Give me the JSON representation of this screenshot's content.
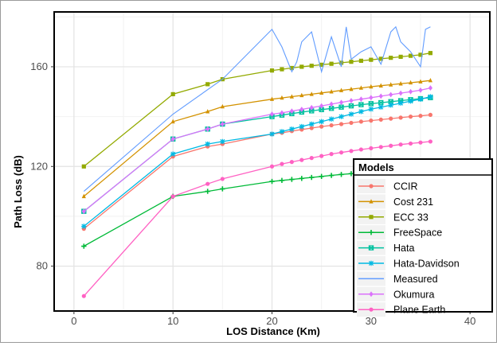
{
  "chart_data": {
    "type": "line",
    "xlabel": "LOS Distance (Km)",
    "ylabel": "Path Loss (dB)",
    "xlim": [
      -2,
      42
    ],
    "ylim": [
      62,
      182
    ],
    "x_ticks": [
      0,
      10,
      20,
      30,
      40
    ],
    "y_ticks": [
      80,
      120,
      160
    ],
    "grid": true,
    "legend": {
      "title": "Models",
      "placement": "bottom-right"
    },
    "series": [
      {
        "name": "CCIR",
        "color": "#f8766d",
        "marker": "circle",
        "x": [
          1,
          10,
          13.5,
          15,
          20,
          21,
          22,
          23,
          24,
          25,
          26,
          27,
          28,
          29,
          30,
          31,
          32,
          33,
          34,
          35,
          36
        ],
        "y": [
          95,
          124,
          128,
          129,
          133,
          133.5,
          134.2,
          134.8,
          135.4,
          136,
          136.5,
          137,
          137.5,
          138,
          138.4,
          138.8,
          139.2,
          139.6,
          140,
          140.3,
          140.7
        ]
      },
      {
        "name": "Cost 231",
        "color": "#d39200",
        "marker": "triangle",
        "x": [
          1,
          10,
          13.5,
          15,
          20,
          21,
          22,
          23,
          24,
          25,
          26,
          27,
          28,
          29,
          30,
          31,
          32,
          33,
          34,
          35,
          36
        ],
        "y": [
          108,
          138,
          142,
          144,
          147,
          147.5,
          148,
          148.5,
          149,
          149.5,
          150,
          150.5,
          151,
          151.5,
          152,
          152.4,
          152.8,
          153.2,
          153.6,
          154,
          154.5
        ]
      },
      {
        "name": "ECC 33",
        "color": "#93aa00",
        "marker": "square",
        "x": [
          1,
          10,
          13.5,
          15,
          20,
          21,
          22,
          23,
          24,
          25,
          26,
          27,
          28,
          29,
          30,
          31,
          32,
          33,
          34,
          35,
          36
        ],
        "y": [
          120,
          149,
          153,
          155,
          158.5,
          159,
          159.5,
          160,
          160.4,
          160.8,
          161.2,
          161.6,
          162,
          162.4,
          162.8,
          163.2,
          163.6,
          164,
          164.4,
          164.8,
          165.5
        ]
      },
      {
        "name": "FreeSpace",
        "color": "#00ba38",
        "marker": "plus",
        "x": [
          1,
          10,
          13.5,
          15,
          20,
          21,
          22,
          23,
          24,
          25,
          26,
          27,
          28,
          29,
          30,
          31,
          32,
          33,
          34,
          35,
          36
        ],
        "y": [
          88,
          108,
          110,
          111,
          114,
          114.4,
          114.8,
          115.2,
          115.6,
          116,
          116.4,
          116.8,
          117.1,
          117.4,
          117.7,
          118,
          118.3,
          118.6,
          118.9,
          119.2,
          119.5
        ]
      },
      {
        "name": "Hata",
        "color": "#00c19f",
        "marker": "square-x",
        "x": [
          1,
          10,
          13.5,
          15,
          20,
          21,
          22,
          23,
          24,
          25,
          26,
          27,
          28,
          29,
          30,
          31,
          32,
          33,
          34,
          35,
          36
        ],
        "y": [
          102,
          131,
          135,
          137,
          140,
          140.6,
          141.2,
          141.8,
          142.3,
          142.8,
          143.3,
          143.8,
          144.3,
          144.8,
          145.2,
          145.6,
          146,
          146.4,
          146.8,
          147.2,
          147.6
        ]
      },
      {
        "name": "Hata-Davidson",
        "color": "#00b9e3",
        "marker": "star",
        "x": [
          1,
          10,
          13.5,
          15,
          20,
          21,
          22,
          23,
          24,
          25,
          26,
          27,
          28,
          29,
          30,
          31,
          32,
          33,
          34,
          35,
          36
        ],
        "y": [
          96,
          125,
          129,
          130,
          133,
          134,
          135,
          136,
          137,
          138,
          139,
          140,
          141,
          142,
          143,
          143.8,
          144.6,
          145.4,
          146.2,
          147,
          148
        ]
      },
      {
        "name": "Measured",
        "color": "#619cff",
        "marker": "none",
        "x": [
          1,
          10,
          15,
          20,
          21,
          22,
          22.5,
          23,
          24,
          25,
          26,
          27,
          27.5,
          28,
          29,
          30,
          31,
          32,
          32.5,
          33,
          34,
          35,
          35.5,
          36
        ],
        "y": [
          110,
          141,
          155,
          175,
          168,
          158,
          162,
          170,
          174,
          158,
          172,
          160,
          176,
          163,
          166,
          168,
          161,
          174,
          176,
          170,
          166,
          160,
          175,
          176
        ]
      },
      {
        "name": "Okumura",
        "color": "#db72fb",
        "marker": "diamond",
        "x": [
          1,
          10,
          13.5,
          15,
          20,
          21,
          22,
          23,
          24,
          25,
          26,
          27,
          28,
          29,
          30,
          31,
          32,
          33,
          34,
          35,
          36
        ],
        "y": [
          102,
          131,
          135,
          137,
          141,
          141.5,
          142.2,
          142.9,
          143.6,
          144.3,
          145,
          145.7,
          146.4,
          147,
          147.6,
          148.2,
          148.8,
          149.4,
          150,
          150.6,
          151.5
        ]
      },
      {
        "name": "Plane Earth",
        "color": "#ff61c3",
        "marker": "circle",
        "x": [
          1,
          10,
          13.5,
          15,
          20,
          21,
          22,
          23,
          24,
          25,
          26,
          27,
          28,
          29,
          30,
          31,
          32,
          33,
          34,
          35,
          36
        ],
        "y": [
          68,
          108,
          113,
          115,
          120,
          121,
          121.8,
          122.6,
          123.4,
          124.2,
          125,
          125.6,
          126.2,
          126.8,
          127.3,
          127.8,
          128.3,
          128.8,
          129.2,
          129.6,
          130
        ]
      }
    ]
  }
}
